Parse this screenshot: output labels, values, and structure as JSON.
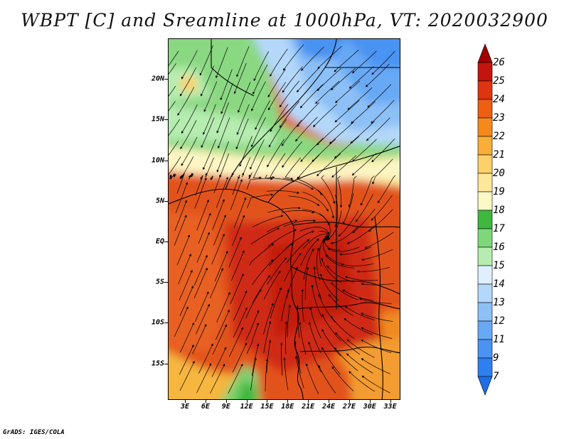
{
  "title": "WBPT [C] and Sreamline at 1000hPa, VT: 2020032900",
  "credit": "GrADS: IGES/COLA",
  "map": {
    "lat_labels": [
      {
        "lat": 20,
        "text": "20N"
      },
      {
        "lat": 15,
        "text": "15N"
      },
      {
        "lat": 10,
        "text": "10N"
      },
      {
        "lat": 5,
        "text": "5N"
      },
      {
        "lat": 0,
        "text": "EQ"
      },
      {
        "lat": -5,
        "text": "5S"
      },
      {
        "lat": -10,
        "text": "10S"
      },
      {
        "lat": -15,
        "text": "15S"
      }
    ],
    "lon_labels": [
      {
        "lon": 3,
        "text": "3E"
      },
      {
        "lon": 6,
        "text": "6E"
      },
      {
        "lon": 9,
        "text": "9E"
      },
      {
        "lon": 12,
        "text": "12E"
      },
      {
        "lon": 15,
        "text": "15E"
      },
      {
        "lon": 18,
        "text": "18E"
      },
      {
        "lon": 21,
        "text": "21E"
      },
      {
        "lon": 24,
        "text": "24E"
      },
      {
        "lon": 27,
        "text": "27E"
      },
      {
        "lon": 30,
        "text": "30E"
      },
      {
        "lon": 33,
        "text": "33E"
      }
    ],
    "lat_range": [
      -19.5,
      25
    ],
    "lon_range": [
      0.5,
      34.5
    ]
  },
  "colorbar": {
    "levels": [
      "7",
      "9",
      "11",
      "12",
      "13",
      "14",
      "15",
      "16",
      "17",
      "18",
      "19",
      "20",
      "21",
      "22",
      "23",
      "24",
      "25",
      "26"
    ],
    "colors": [
      "#1e6ee6",
      "#2e7ff0",
      "#4a93f2",
      "#68a9f5",
      "#8cc0f7",
      "#b4d8fa",
      "#def0ff",
      "#b6ecb0",
      "#7ed87a",
      "#3eb83e",
      "#fdf8c6",
      "#fde89a",
      "#fdd06a",
      "#f9ae38",
      "#f7891c",
      "#ee5f12",
      "#dd3510",
      "#c41410",
      "#a00000"
    ]
  }
}
